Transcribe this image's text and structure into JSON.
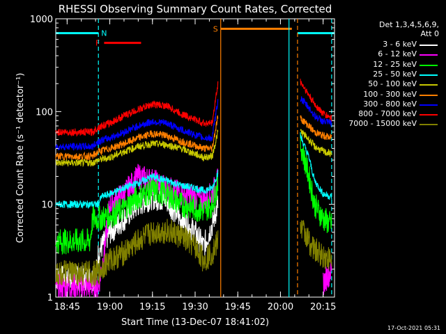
{
  "chart_data": {
    "type": "line",
    "title": "RHESSI Observing Summary Count Rates, Corrected",
    "xlabel": "Start Time (13-Dec-07 18:41:02)",
    "ylabel": "Corrected Count Rate (s⁻¹ detector⁻¹)",
    "yscale": "log",
    "ylim": [
      1,
      1000
    ],
    "xlim": [
      "18:41",
      "20:19"
    ],
    "xticks": [
      "18:45",
      "19:00",
      "19:15",
      "19:30",
      "19:45",
      "20:00",
      "20:15"
    ],
    "yticks": [
      "1",
      "10",
      "100",
      "1000"
    ],
    "detectors_note": [
      "Det 1,3,4,5,6,9,",
      "Att 0"
    ],
    "timestamp": "17-Oct-2021 05:31",
    "flags": [
      {
        "label": "N",
        "color": "#00ffff",
        "start": "18:41",
        "end": "18:56",
        "level": 700
      },
      {
        "label": "F",
        "color": "#ff0000",
        "start": "18:58",
        "end": "19:11",
        "level": 550
      },
      {
        "label": "S",
        "color": "#ff7f00",
        "start": "19:39",
        "end": "20:04",
        "level": 780
      },
      {
        "label": "",
        "color": "#00ffff",
        "start": "20:06",
        "end": "20:19",
        "level": 700
      }
    ],
    "vlines": [
      {
        "t": "18:56",
        "color": "#00ffff",
        "style": "dashed"
      },
      {
        "t": "19:39",
        "color": "#ff7f00",
        "style": "solid"
      },
      {
        "t": "20:03",
        "color": "#00ffff",
        "style": "solid"
      },
      {
        "t": "20:06",
        "color": "#ff7f00",
        "style": "dashed"
      },
      {
        "t": "20:18",
        "color": "#00ffff",
        "style": "dashed"
      }
    ],
    "gap": [
      "19:39",
      "20:07"
    ],
    "series": [
      {
        "name": "3 - 6 keV",
        "color": "#ffffff",
        "pre": [
          [
            "18:41",
            1.6
          ],
          [
            "18:55",
            1.6
          ],
          [
            "18:56",
            3
          ],
          [
            "19:00",
            5
          ],
          [
            "19:05",
            7
          ],
          [
            "19:10",
            10
          ],
          [
            "19:15",
            12
          ],
          [
            "19:20",
            11
          ],
          [
            "19:25",
            7
          ],
          [
            "19:30",
            5
          ],
          [
            "19:33",
            3.5
          ],
          [
            "19:36",
            6
          ],
          [
            "19:38",
            10
          ]
        ],
        "post": []
      },
      {
        "name": "6 - 12 keV",
        "color": "#ff00ff",
        "pre": [
          [
            "18:41",
            1.3
          ],
          [
            "18:56",
            1.3
          ],
          [
            "18:58",
            3
          ],
          [
            "19:00",
            10
          ],
          [
            "19:05",
            13
          ],
          [
            "19:10",
            20
          ],
          [
            "19:15",
            18
          ],
          [
            "19:20",
            15
          ],
          [
            "19:25",
            13
          ],
          [
            "19:30",
            12
          ],
          [
            "19:33",
            11
          ],
          [
            "19:36",
            13
          ],
          [
            "19:38",
            18
          ]
        ],
        "post": [
          [
            "20:15",
            1.4
          ],
          [
            "20:18",
            2
          ]
        ]
      },
      {
        "name": "12 - 25 keV",
        "color": "#00ff00",
        "pre": [
          [
            "18:41",
            4
          ],
          [
            "18:53",
            4
          ],
          [
            "18:54",
            7
          ],
          [
            "18:56",
            7
          ],
          [
            "19:00",
            7.5
          ],
          [
            "19:05",
            9
          ],
          [
            "19:10",
            12
          ],
          [
            "19:15",
            14
          ],
          [
            "19:20",
            13
          ],
          [
            "19:25",
            10
          ],
          [
            "19:30",
            9
          ],
          [
            "19:33",
            8.5
          ],
          [
            "19:36",
            10
          ],
          [
            "19:38",
            16
          ]
        ],
        "post": [
          [
            "20:07",
            45
          ],
          [
            "20:10",
            20
          ],
          [
            "20:12",
            10
          ],
          [
            "20:15",
            7
          ],
          [
            "20:18",
            6
          ]
        ]
      },
      {
        "name": "25 - 50 keV",
        "color": "#00ffff",
        "pre": [
          [
            "18:41",
            10
          ],
          [
            "18:56",
            10
          ],
          [
            "18:57",
            12
          ],
          [
            "19:00",
            13
          ],
          [
            "19:05",
            15
          ],
          [
            "19:10",
            17
          ],
          [
            "19:15",
            20
          ],
          [
            "19:20",
            18
          ],
          [
            "19:25",
            16
          ],
          [
            "19:30",
            15
          ],
          [
            "19:33",
            14
          ],
          [
            "19:36",
            15
          ],
          [
            "19:38",
            22
          ]
        ],
        "post": [
          [
            "20:07",
            55
          ],
          [
            "20:10",
            32
          ],
          [
            "20:12",
            18
          ],
          [
            "20:15",
            13
          ],
          [
            "20:18",
            12
          ]
        ]
      },
      {
        "name": "50 - 100 keV",
        "color": "#c8c800",
        "pre": [
          [
            "18:41",
            28
          ],
          [
            "18:54",
            28
          ],
          [
            "18:56",
            30
          ],
          [
            "19:00",
            32
          ],
          [
            "19:05",
            37
          ],
          [
            "19:10",
            42
          ],
          [
            "19:15",
            45
          ],
          [
            "19:20",
            44
          ],
          [
            "19:25",
            40
          ],
          [
            "19:30",
            35
          ],
          [
            "19:33",
            32
          ],
          [
            "19:36",
            33
          ],
          [
            "19:38",
            60
          ]
        ],
        "post": [
          [
            "20:07",
            62
          ],
          [
            "20:10",
            50
          ],
          [
            "20:12",
            42
          ],
          [
            "20:15",
            37
          ],
          [
            "20:18",
            35
          ]
        ]
      },
      {
        "name": "100 - 300 keV",
        "color": "#ff7f00",
        "pre": [
          [
            "18:41",
            33
          ],
          [
            "18:54",
            33
          ],
          [
            "18:56",
            37
          ],
          [
            "19:00",
            40
          ],
          [
            "19:05",
            45
          ],
          [
            "19:10",
            52
          ],
          [
            "19:15",
            58
          ],
          [
            "19:20",
            55
          ],
          [
            "19:25",
            48
          ],
          [
            "19:30",
            43
          ],
          [
            "19:33",
            40
          ],
          [
            "19:36",
            40
          ],
          [
            "19:38",
            90
          ]
        ],
        "post": [
          [
            "20:07",
            85
          ],
          [
            "20:10",
            70
          ],
          [
            "20:12",
            60
          ],
          [
            "20:15",
            55
          ],
          [
            "20:18",
            52
          ]
        ]
      },
      {
        "name": "300 - 800 keV",
        "color": "#0000ff",
        "pre": [
          [
            "18:41",
            42
          ],
          [
            "18:54",
            42
          ],
          [
            "18:56",
            48
          ],
          [
            "19:00",
            52
          ],
          [
            "19:05",
            60
          ],
          [
            "19:10",
            70
          ],
          [
            "19:15",
            78
          ],
          [
            "19:20",
            75
          ],
          [
            "19:25",
            64
          ],
          [
            "19:30",
            56
          ],
          [
            "19:33",
            52
          ],
          [
            "19:36",
            52
          ],
          [
            "19:38",
            130
          ]
        ],
        "post": [
          [
            "20:07",
            140
          ],
          [
            "20:10",
            110
          ],
          [
            "20:12",
            90
          ],
          [
            "20:15",
            78
          ],
          [
            "20:18",
            75
          ]
        ]
      },
      {
        "name": "800 - 7000 keV",
        "color": "#ff0000",
        "pre": [
          [
            "18:41",
            60
          ],
          [
            "18:54",
            60
          ],
          [
            "18:56",
            68
          ],
          [
            "19:00",
            75
          ],
          [
            "19:05",
            90
          ],
          [
            "19:10",
            105
          ],
          [
            "19:15",
            120
          ],
          [
            "19:20",
            115
          ],
          [
            "19:25",
            95
          ],
          [
            "19:30",
            82
          ],
          [
            "19:33",
            75
          ],
          [
            "19:36",
            75
          ],
          [
            "19:38",
            200
          ]
        ],
        "post": [
          [
            "20:07",
            210
          ],
          [
            "20:10",
            150
          ],
          [
            "20:12",
            120
          ],
          [
            "20:15",
            95
          ],
          [
            "20:18",
            85
          ]
        ]
      },
      {
        "name": "7000 - 15000 keV",
        "color": "#808000",
        "pre": [
          [
            "18:41",
            1.8
          ],
          [
            "18:56",
            1.8
          ],
          [
            "18:58",
            2.2
          ],
          [
            "19:00",
            2.5
          ],
          [
            "19:05",
            3
          ],
          [
            "19:10",
            4
          ],
          [
            "19:15",
            5
          ],
          [
            "19:20",
            5.2
          ],
          [
            "19:25",
            4.5
          ],
          [
            "19:30",
            3.5
          ],
          [
            "19:33",
            2.5
          ],
          [
            "19:36",
            3
          ],
          [
            "19:38",
            4
          ]
        ],
        "post": [
          [
            "20:07",
            6
          ],
          [
            "20:10",
            4
          ],
          [
            "20:12",
            3.2
          ],
          [
            "20:15",
            2.8
          ],
          [
            "20:18",
            2.5
          ]
        ]
      }
    ]
  }
}
